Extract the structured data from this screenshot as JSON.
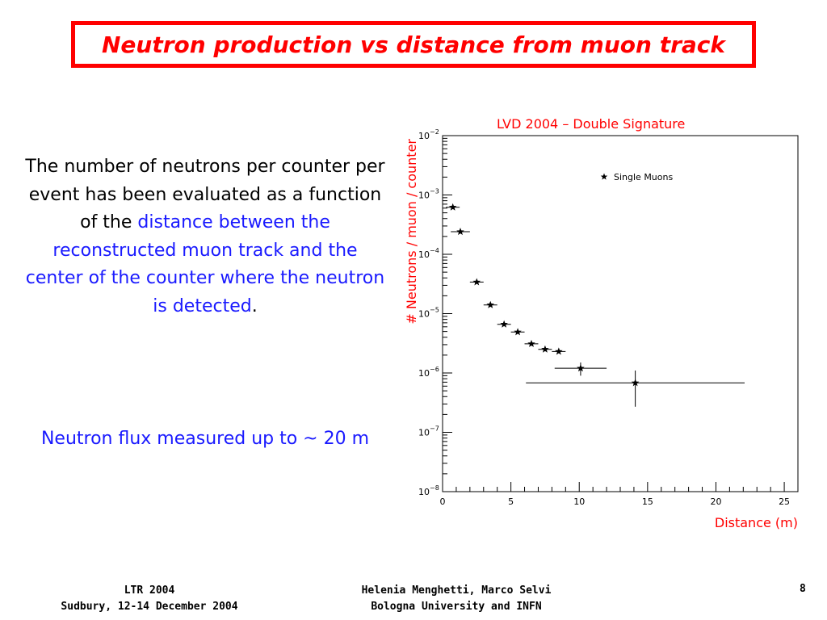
{
  "slide": {
    "title": "Neutron production vs distance from muon track",
    "description_black": "The number of neutrons per counter per event has been evaluated  as a function of the",
    "description_blue": "distance between the reconstructed muon track and the center of the counter where the neutron is detected",
    "description_end": ".",
    "flux_note": "Neutron flux measured up to ~ 20 m",
    "footer_left_line1": "LTR 2004",
    "footer_left_line2": "Sudbury, 12-14 December 2004",
    "footer_mid_line1": "Helenia Menghetti, Marco Selvi",
    "footer_mid_line2": "Bologna University and INFN",
    "page_number": "8"
  },
  "colors": {
    "title": "#ff0000",
    "accent_text": "#1a1aff",
    "axis_label": "#ff0000"
  },
  "chart_data": {
    "type": "scatter",
    "title": "LVD 2004 – Double Signature",
    "xlabel": "Distance (m)",
    "ylabel": "# Neutrons / muon / counter",
    "xlim": [
      0,
      26
    ],
    "ylim": [
      1e-08,
      0.01
    ],
    "y_scale": "log",
    "x_ticks": [
      "0",
      "5",
      "10",
      "15",
      "20",
      "25"
    ],
    "y_ticks": [
      {
        "base": "10",
        "exp": "−2"
      },
      {
        "base": "10",
        "exp": "−3"
      },
      {
        "base": "10",
        "exp": "−4"
      },
      {
        "base": "10",
        "exp": "−5"
      },
      {
        "base": "10",
        "exp": "−6"
      },
      {
        "base": "10",
        "exp": "−7"
      },
      {
        "base": "10",
        "exp": "−8"
      }
    ],
    "legend": "top-right",
    "series": [
      {
        "name": "Single Muons",
        "marker": "star",
        "points": [
          {
            "x": 0.75,
            "xerr": 0.5,
            "y": 0.00062,
            "ylo": 0.00062,
            "yhi": 0.00062
          },
          {
            "x": 1.3,
            "xerr": 0.7,
            "y": 0.00024,
            "ylo": 0.00024,
            "yhi": 0.00024
          },
          {
            "x": 2.5,
            "xerr": 0.5,
            "y": 3.4e-05,
            "ylo": 3.4e-05,
            "yhi": 3.4e-05
          },
          {
            "x": 3.5,
            "xerr": 0.5,
            "y": 1.4e-05,
            "ylo": 1.4e-05,
            "yhi": 1.4e-05
          },
          {
            "x": 4.5,
            "xerr": 0.5,
            "y": 6.6e-06,
            "ylo": 6.6e-06,
            "yhi": 6.6e-06
          },
          {
            "x": 5.5,
            "xerr": 0.5,
            "y": 4.9e-06,
            "ylo": 4.9e-06,
            "yhi": 4.9e-06
          },
          {
            "x": 6.5,
            "xerr": 0.5,
            "y": 3.1e-06,
            "ylo": 3.1e-06,
            "yhi": 3.1e-06
          },
          {
            "x": 7.5,
            "xerr": 0.5,
            "y": 2.5e-06,
            "ylo": 2.5e-06,
            "yhi": 2.5e-06
          },
          {
            "x": 8.5,
            "xerr": 0.5,
            "y": 2.3e-06,
            "ylo": 2.3e-06,
            "yhi": 2.3e-06
          },
          {
            "x": 10.1,
            "xerr": 1.9,
            "y": 1.2e-06,
            "ylo": 9e-07,
            "yhi": 1.5e-06
          },
          {
            "x": 14.1,
            "xerr": 8.0,
            "y": 6.8e-07,
            "ylo": 2.7e-07,
            "yhi": 1.1e-06
          }
        ]
      }
    ]
  }
}
